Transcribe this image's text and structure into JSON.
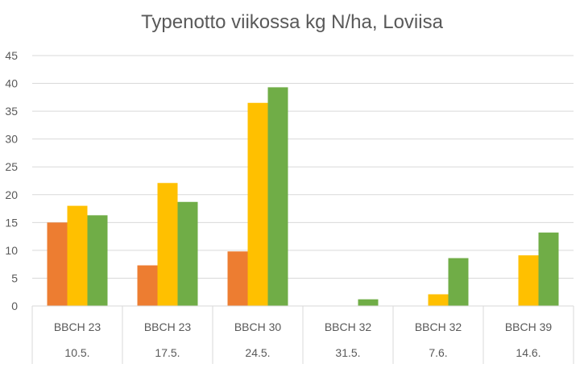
{
  "chart_data": {
    "type": "bar",
    "title": "Typenotto viikossa kg N/ha, Loviisa",
    "xlabel": "",
    "ylabel": "",
    "ylim": [
      0,
      45
    ],
    "yticks": [
      0,
      5,
      10,
      15,
      20,
      25,
      30,
      35,
      40,
      45
    ],
    "grid": true,
    "legend": "none",
    "categories": [
      {
        "stage": "BBCH 23",
        "date": "10.5."
      },
      {
        "stage": "BBCH 23",
        "date": "17.5."
      },
      {
        "stage": "BBCH 30",
        "date": "24.5."
      },
      {
        "stage": "BBCH 32",
        "date": "31.5."
      },
      {
        "stage": "BBCH 32",
        "date": "7.6."
      },
      {
        "stage": "BBCH 39",
        "date": "14.6."
      }
    ],
    "series": [
      {
        "name": "Series 1",
        "color": "#ED7D31",
        "values": [
          15.0,
          7.3,
          9.8,
          0,
          0,
          0
        ]
      },
      {
        "name": "Series 2",
        "color": "#FFC000",
        "values": [
          18.0,
          22.1,
          36.5,
          0,
          2.1,
          9.1
        ]
      },
      {
        "name": "Series 3",
        "color": "#70AD47",
        "values": [
          16.3,
          18.7,
          39.3,
          1.2,
          8.6,
          13.2
        ]
      }
    ]
  }
}
